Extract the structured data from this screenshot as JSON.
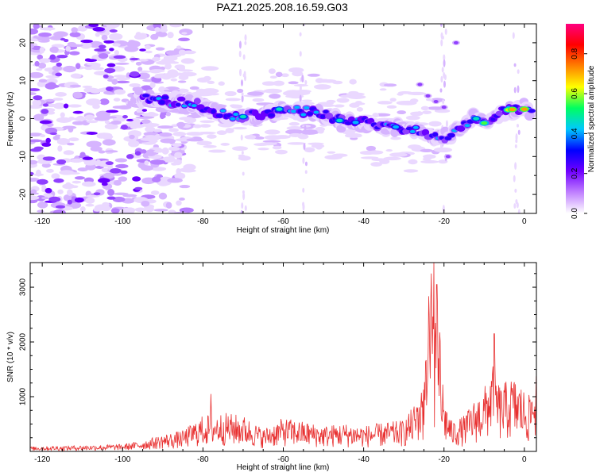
{
  "title": "PAZ1.2025.208.16.59.G03",
  "chart_data": [
    {
      "type": "heatmap",
      "xlabel": "Height of straight line (km)",
      "ylabel": "Frequency (Hz)",
      "xlim": [
        -123,
        3
      ],
      "ylim": [
        -25,
        25
      ],
      "x_ticks": [
        -120,
        -100,
        -80,
        -60,
        -40,
        -20,
        0
      ],
      "y_ticks": [
        -20,
        -10,
        0,
        10,
        20
      ],
      "colorbar": {
        "label": "Normalized spectral amplitude",
        "range": [
          0,
          0.95
        ],
        "ticks": [
          "0.0",
          "0.2",
          "0.4",
          "0.6",
          "0.8"
        ],
        "colors": [
          "#ffffff",
          "#c080ff",
          "#7000ff",
          "#0000ff",
          "#00c8ff",
          "#00ff60",
          "#ffff00",
          "#ff8000",
          "#ff0000",
          "#ff0080"
        ]
      },
      "ridge": [
        {
          "x": -93,
          "y": 5.5
        },
        {
          "x": -88,
          "y": 4.5
        },
        {
          "x": -82,
          "y": 4
        },
        {
          "x": -76,
          "y": 1.5
        },
        {
          "x": -70,
          "y": 0.5
        },
        {
          "x": -64,
          "y": 1.5
        },
        {
          "x": -58,
          "y": 2
        },
        {
          "x": -52,
          "y": 2
        },
        {
          "x": -46,
          "y": -0.5
        },
        {
          "x": -40,
          "y": -1
        },
        {
          "x": -34,
          "y": -2
        },
        {
          "x": -28,
          "y": -3
        },
        {
          "x": -23,
          "y": -4.5
        },
        {
          "x": -19,
          "y": -5
        },
        {
          "x": -13,
          "y": 0
        },
        {
          "x": -9,
          "y": -1
        },
        {
          "x": -5,
          "y": 2
        },
        {
          "x": 0,
          "y": 2.5
        }
      ]
    },
    {
      "type": "line",
      "xlabel": "Height of straight line (km)",
      "ylabel": "SNR (10 * v/v)",
      "xlim": [
        -123,
        3
      ],
      "ylim": [
        0,
        3450
      ],
      "x_ticks": [
        -120,
        -100,
        -80,
        -60,
        -40,
        -20,
        0
      ],
      "y_ticks": [
        1000,
        2000,
        3000
      ],
      "color": "#e83030",
      "envelope": [
        {
          "x": -123,
          "y": 80
        },
        {
          "x": -110,
          "y": 100
        },
        {
          "x": -100,
          "y": 120
        },
        {
          "x": -95,
          "y": 180
        },
        {
          "x": -90,
          "y": 280
        },
        {
          "x": -85,
          "y": 350
        },
        {
          "x": -80,
          "y": 600
        },
        {
          "x": -75,
          "y": 650
        },
        {
          "x": -70,
          "y": 600
        },
        {
          "x": -65,
          "y": 380
        },
        {
          "x": -60,
          "y": 560
        },
        {
          "x": -55,
          "y": 500
        },
        {
          "x": -50,
          "y": 430
        },
        {
          "x": -45,
          "y": 470
        },
        {
          "x": -40,
          "y": 430
        },
        {
          "x": -35,
          "y": 480
        },
        {
          "x": -30,
          "y": 520
        },
        {
          "x": -27,
          "y": 820
        },
        {
          "x": -25,
          "y": 1500
        },
        {
          "x": -23.5,
          "y": 2900
        },
        {
          "x": -22,
          "y": 2700
        },
        {
          "x": -21,
          "y": 2000
        },
        {
          "x": -20,
          "y": 900
        },
        {
          "x": -18,
          "y": 500
        },
        {
          "x": -15,
          "y": 600
        },
        {
          "x": -12,
          "y": 900
        },
        {
          "x": -10,
          "y": 1050
        },
        {
          "x": -8,
          "y": 1500
        },
        {
          "x": -6,
          "y": 1100
        },
        {
          "x": -3,
          "y": 1250
        },
        {
          "x": -1,
          "y": 1150
        },
        {
          "x": 1,
          "y": 900
        },
        {
          "x": 3,
          "y": 1400
        }
      ],
      "peaks": [
        {
          "x": -22.5,
          "y": 3450
        },
        {
          "x": -23.2,
          "y": 3250
        },
        {
          "x": -21.8,
          "y": 3050
        },
        {
          "x": -7.5,
          "y": 2150
        },
        {
          "x": -78,
          "y": 1050
        }
      ]
    }
  ]
}
